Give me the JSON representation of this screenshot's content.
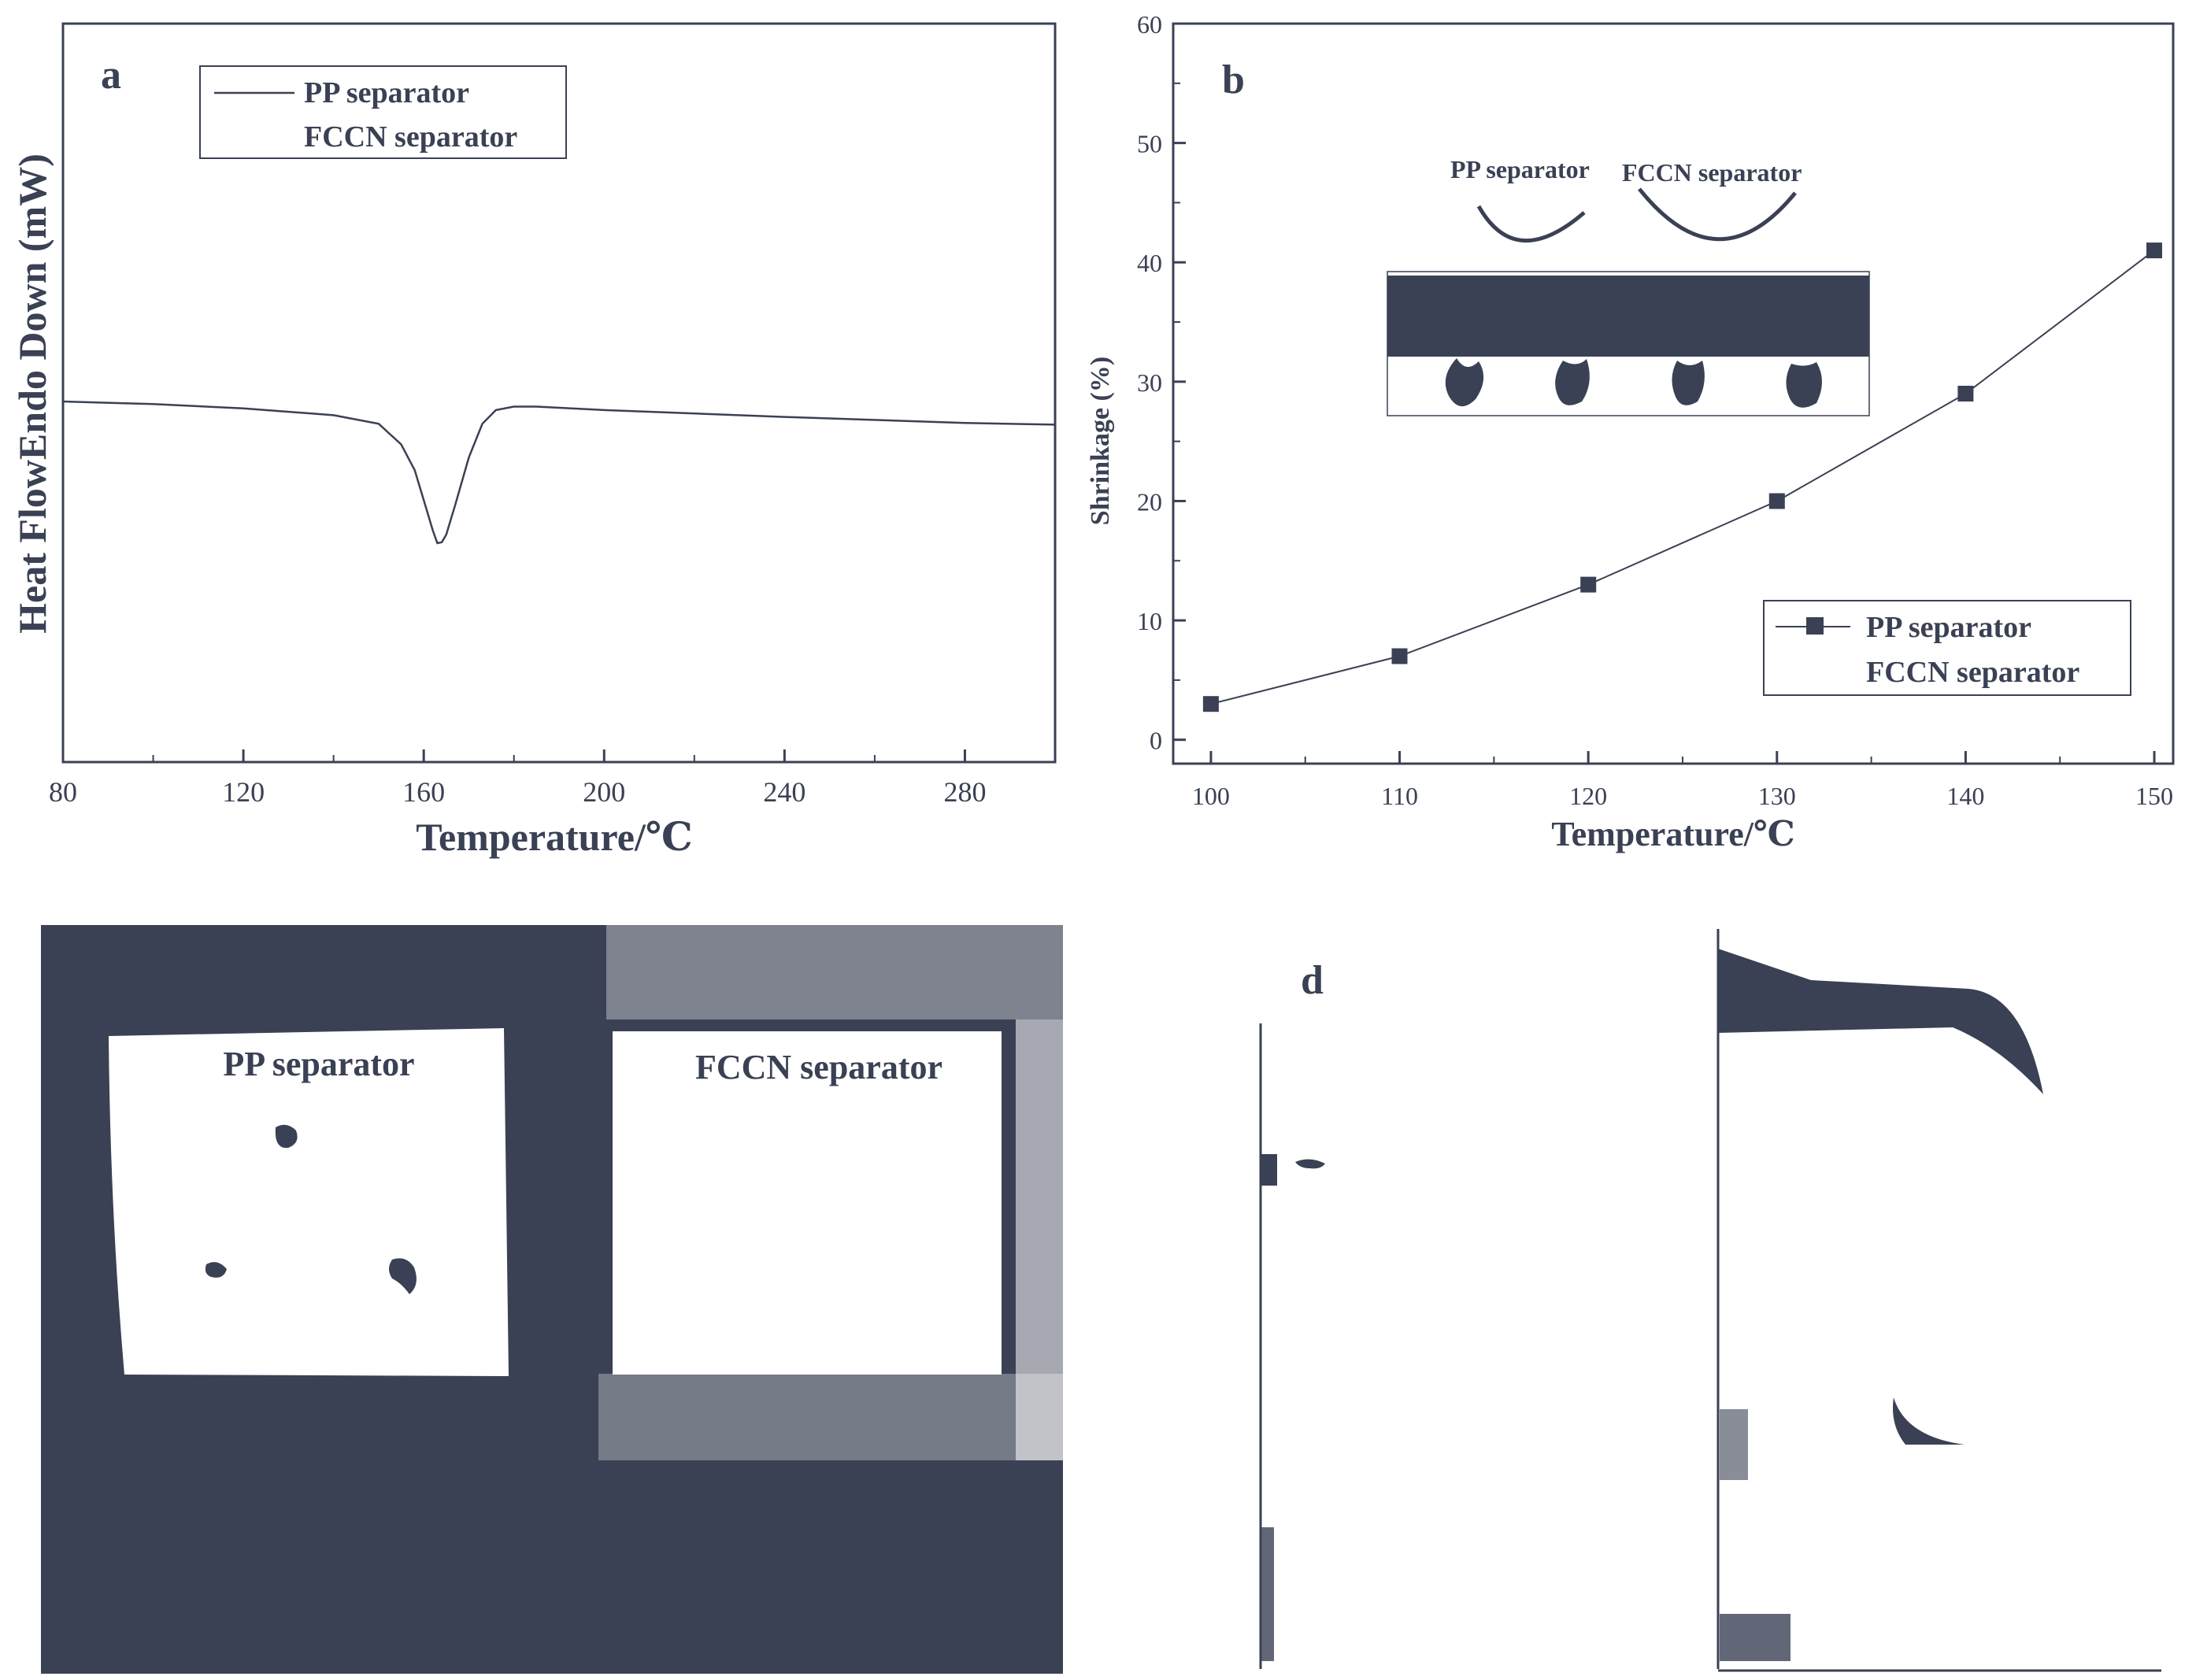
{
  "colors": {
    "ink": "#3a4154",
    "background": "#ffffff"
  },
  "chart_data": [
    {
      "panel": "a",
      "type": "line",
      "xlabel": "Temperature/℃",
      "ylabel": "Heat FlowEndo Down (mW)",
      "xlim": [
        80,
        300
      ],
      "x_ticks": [
        "80",
        "120",
        "160",
        "200",
        "240",
        "280"
      ],
      "y_ticks": [],
      "legend": {
        "placement": "top-left",
        "entries": [
          "PP separator",
          "FCCN separator"
        ]
      },
      "grid": false,
      "series": [
        {
          "name": "PP separator",
          "x": [
            80,
            100,
            120,
            140,
            150,
            155,
            158,
            160,
            162,
            163,
            164,
            165,
            167,
            170,
            173,
            176,
            180,
            185,
            200,
            240,
            280,
            300
          ],
          "y": [
            0.0,
            -0.3,
            -0.8,
            -1.6,
            -2.6,
            -5.0,
            -8.0,
            -11.5,
            -15.0,
            -16.5,
            -16.4,
            -15.5,
            -12.0,
            -6.5,
            -2.6,
            -1.0,
            -0.6,
            -0.6,
            -1.0,
            -1.8,
            -2.5,
            -2.7
          ]
        }
      ]
    },
    {
      "panel": "b",
      "type": "line",
      "xlabel": "Temperature/℃",
      "ylabel": "Shrinkage (%)",
      "xlim": [
        98,
        151
      ],
      "ylim": [
        -2,
        60
      ],
      "x_ticks": [
        "100",
        "110",
        "120",
        "130",
        "140",
        "150"
      ],
      "y_ticks": [
        "0",
        "10",
        "20",
        "30",
        "40",
        "50",
        "60"
      ],
      "legend": {
        "placement": "bottom-right",
        "entries": [
          "PP separator",
          "FCCN separator"
        ]
      },
      "grid": false,
      "series": [
        {
          "name": "PP separator",
          "x": [
            100,
            110,
            120,
            130,
            140,
            150
          ],
          "y": [
            3,
            7,
            13,
            20,
            29,
            41
          ]
        }
      ],
      "inset_labels": [
        "PP separator",
        "FCCN separator"
      ]
    }
  ],
  "panel_c": {
    "labels": [
      "PP separator",
      "FCCN separator"
    ]
  },
  "panel_d": {
    "label": "d"
  },
  "panel_labels": {
    "a": "a",
    "b": "b"
  }
}
